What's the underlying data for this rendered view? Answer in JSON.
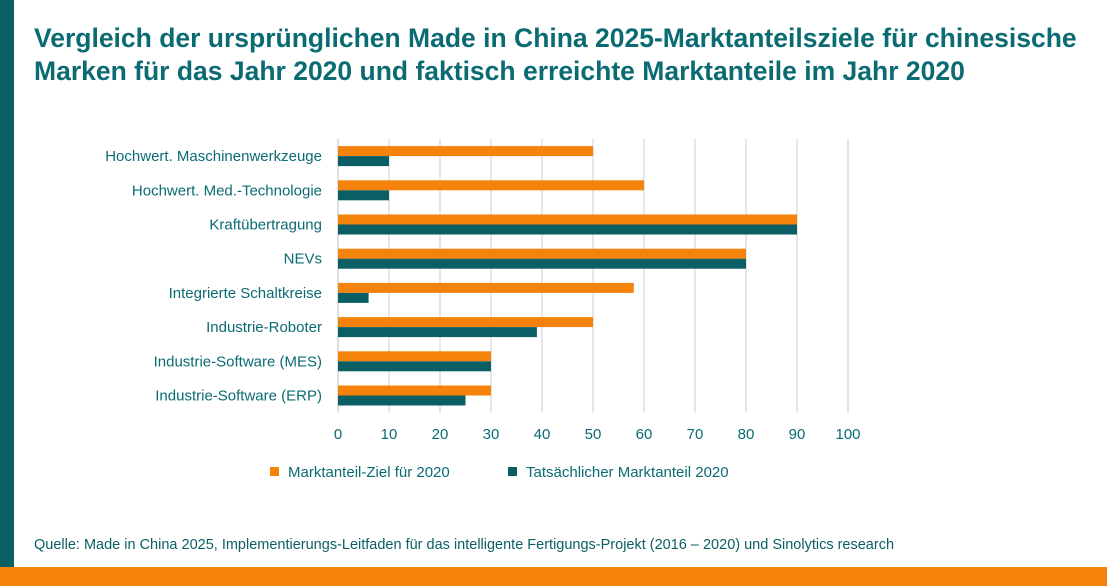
{
  "title": "Vergleich der ursprünglichen Made in China 2025-Marktanteilsziele für chinesische Marken für das Jahr 2020 und faktisch erreichte Marktanteile im Jahr 2020",
  "source": "Quelle: Made in China 2025, Implementierungs-Leitfaden für das intelligente Fertigungs-Projekt (2016 – 2020) und Sinolytics research",
  "colors": {
    "accent_teal": "#0b5e64",
    "accent_orange": "#f5830b",
    "grid": "#cccccc"
  },
  "chart_data": {
    "type": "bar",
    "orientation": "horizontal",
    "title": "Vergleich der ursprünglichen Made in China 2025-Marktanteilsziele für chinesische Marken für das Jahr 2020 und faktisch erreichte Marktanteile im Jahr 2020",
    "categories": [
      "Hochwert. Maschinenwerkzeuge",
      "Hochwert. Med.-Technologie",
      "Kraftübertragung",
      "NEVs",
      "Integrierte Schaltkreise",
      "Industrie-Roboter",
      "Industrie-Software (MES)",
      "Industrie-Software (ERP)"
    ],
    "series": [
      {
        "name": "Marktanteil-Ziel für 2020",
        "color": "#f5830b",
        "values": [
          50,
          60,
          90,
          80,
          58,
          50,
          30,
          30
        ]
      },
      {
        "name": "Tatsächlicher Marktanteil 2020",
        "color": "#0b5e64",
        "values": [
          10,
          10,
          90,
          80,
          6,
          39,
          30,
          25
        ]
      }
    ],
    "xlim": [
      0,
      100
    ],
    "xticks": [
      0,
      10,
      20,
      30,
      40,
      50,
      60,
      70,
      80,
      90,
      100
    ],
    "xlabel": "",
    "ylabel": "",
    "grid": "vertical",
    "legend": "bottom"
  }
}
